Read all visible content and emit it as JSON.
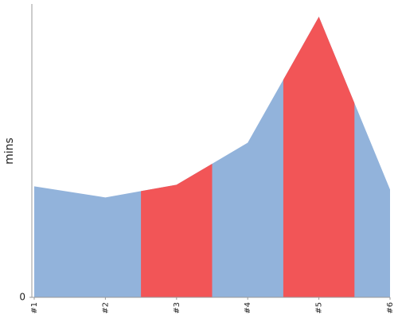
{
  "chart_data": {
    "type": "area",
    "y_label": "mins",
    "categories": [
      "#1",
      "#2",
      "#3",
      "#4",
      "#5",
      "#6"
    ],
    "values": [
      14,
      12.6,
      14.2,
      19.5,
      35.4,
      13.6
    ],
    "color": "#92b3db",
    "highlight_color": "#f25557",
    "highlight": [
      2,
      4
    ],
    "ylim": [
      0,
      37
    ],
    "yticks": [
      0
    ]
  }
}
